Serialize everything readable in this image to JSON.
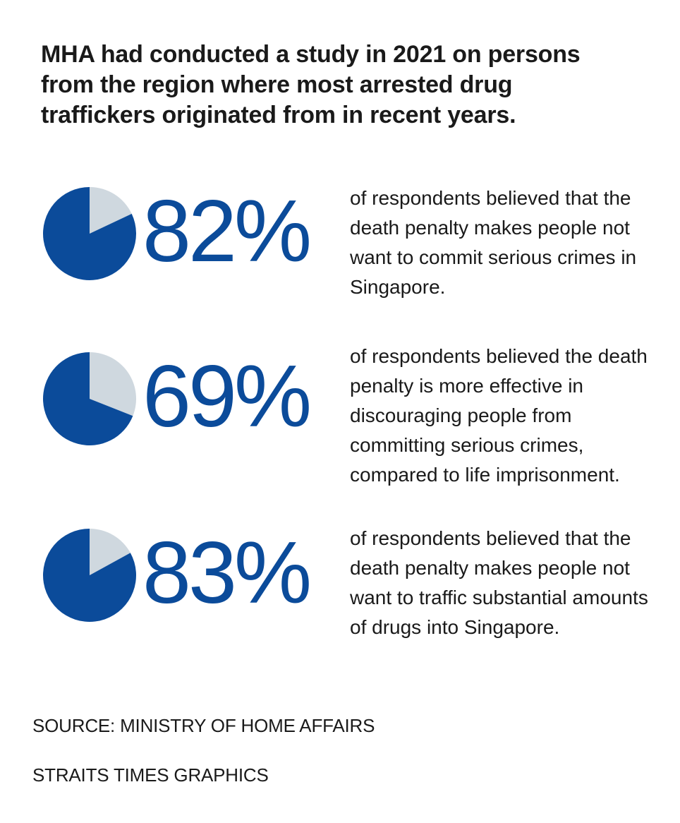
{
  "headline": "MHA had conducted a study in 2021 on persons from the region where most arrested drug traffickers originated from in recent years.",
  "colors": {
    "accent": "#0b4b9a",
    "remainder": "#cfd8df",
    "text": "#1a1a1a"
  },
  "chart_data": [
    {
      "type": "pie",
      "values": [
        82,
        18
      ],
      "label": "82%",
      "description": "of respondents believed that the death penalty makes people not want to commit serious crimes in Singapore."
    },
    {
      "type": "pie",
      "values": [
        69,
        31
      ],
      "label": "69%",
      "description": "of respondents believed the death penalty is more effective in discouraging people from committing serious crimes, compared to life imprisonment."
    },
    {
      "type": "pie",
      "values": [
        83,
        17
      ],
      "label": "83%",
      "description": "of respondents believed that the death penalty makes people not want to traffic substantial amounts of drugs into Singapore."
    }
  ],
  "footer": {
    "source": "SOURCE: MINISTRY OF HOME AFFAIRS",
    "credit": "STRAITS TIMES GRAPHICS"
  }
}
